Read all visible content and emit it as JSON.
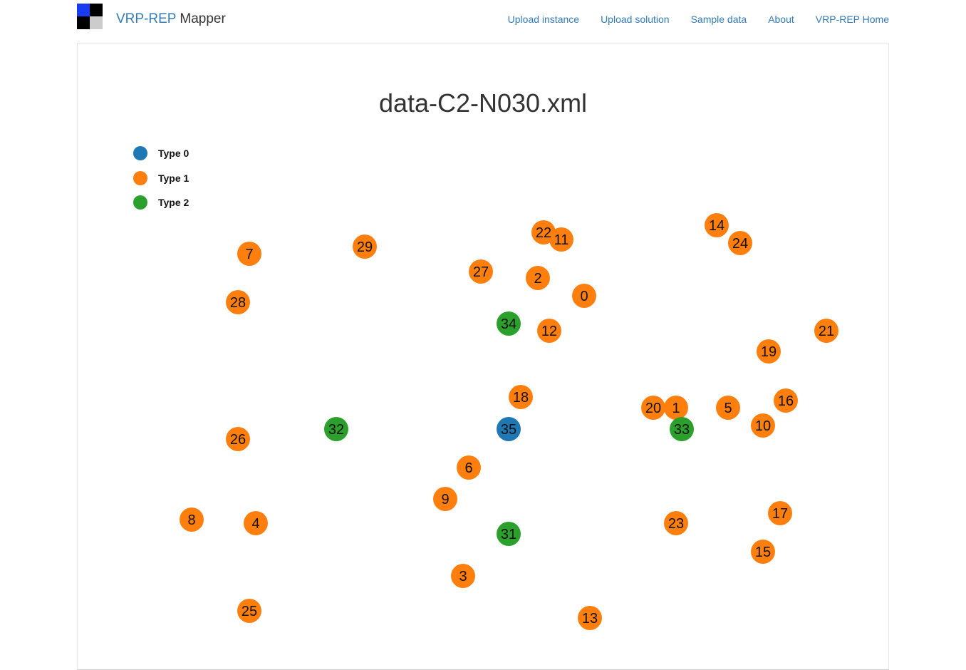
{
  "app": {
    "brand_part1": "VRP-REP",
    "brand_part2": "Mapper",
    "logo_colors": [
      "#1a3cf0",
      "#000000",
      "#000000",
      "#cccccc"
    ]
  },
  "nav": {
    "links": [
      {
        "label": "Upload instance"
      },
      {
        "label": "Upload solution"
      },
      {
        "label": "Sample data"
      },
      {
        "label": "About"
      },
      {
        "label": "VRP-REP Home"
      }
    ]
  },
  "map": {
    "title": "data-C2-N030.xml",
    "legend": [
      {
        "label": "Type 0",
        "color": "#1f77b4"
      },
      {
        "label": "Type 1",
        "color": "#ff7f0e"
      },
      {
        "label": "Type 2",
        "color": "#2ca02c"
      }
    ],
    "nodes": [
      {
        "id": "0",
        "type": 1
      },
      {
        "id": "1",
        "type": 1
      },
      {
        "id": "2",
        "type": 1
      },
      {
        "id": "3",
        "type": 1
      },
      {
        "id": "4",
        "type": 1
      },
      {
        "id": "5",
        "type": 1
      },
      {
        "id": "6",
        "type": 1
      },
      {
        "id": "7",
        "type": 1
      },
      {
        "id": "8",
        "type": 1
      },
      {
        "id": "9",
        "type": 1
      },
      {
        "id": "10",
        "type": 1
      },
      {
        "id": "11",
        "type": 1
      },
      {
        "id": "12",
        "type": 1
      },
      {
        "id": "13",
        "type": 1
      },
      {
        "id": "14",
        "type": 1
      },
      {
        "id": "15",
        "type": 1
      },
      {
        "id": "16",
        "type": 1
      },
      {
        "id": "17",
        "type": 1
      },
      {
        "id": "18",
        "type": 1
      },
      {
        "id": "19",
        "type": 1
      },
      {
        "id": "20",
        "type": 1
      },
      {
        "id": "21",
        "type": 1
      },
      {
        "id": "22",
        "type": 1
      },
      {
        "id": "23",
        "type": 1
      },
      {
        "id": "24",
        "type": 1
      },
      {
        "id": "25",
        "type": 1
      },
      {
        "id": "26",
        "type": 1
      },
      {
        "id": "27",
        "type": 1
      },
      {
        "id": "28",
        "type": 1
      },
      {
        "id": "29",
        "type": 1
      },
      {
        "id": "31",
        "type": 2
      },
      {
        "id": "32",
        "type": 2
      },
      {
        "id": "33",
        "type": 2
      },
      {
        "id": "34",
        "type": 2
      },
      {
        "id": "35",
        "type": 0
      }
    ]
  }
}
